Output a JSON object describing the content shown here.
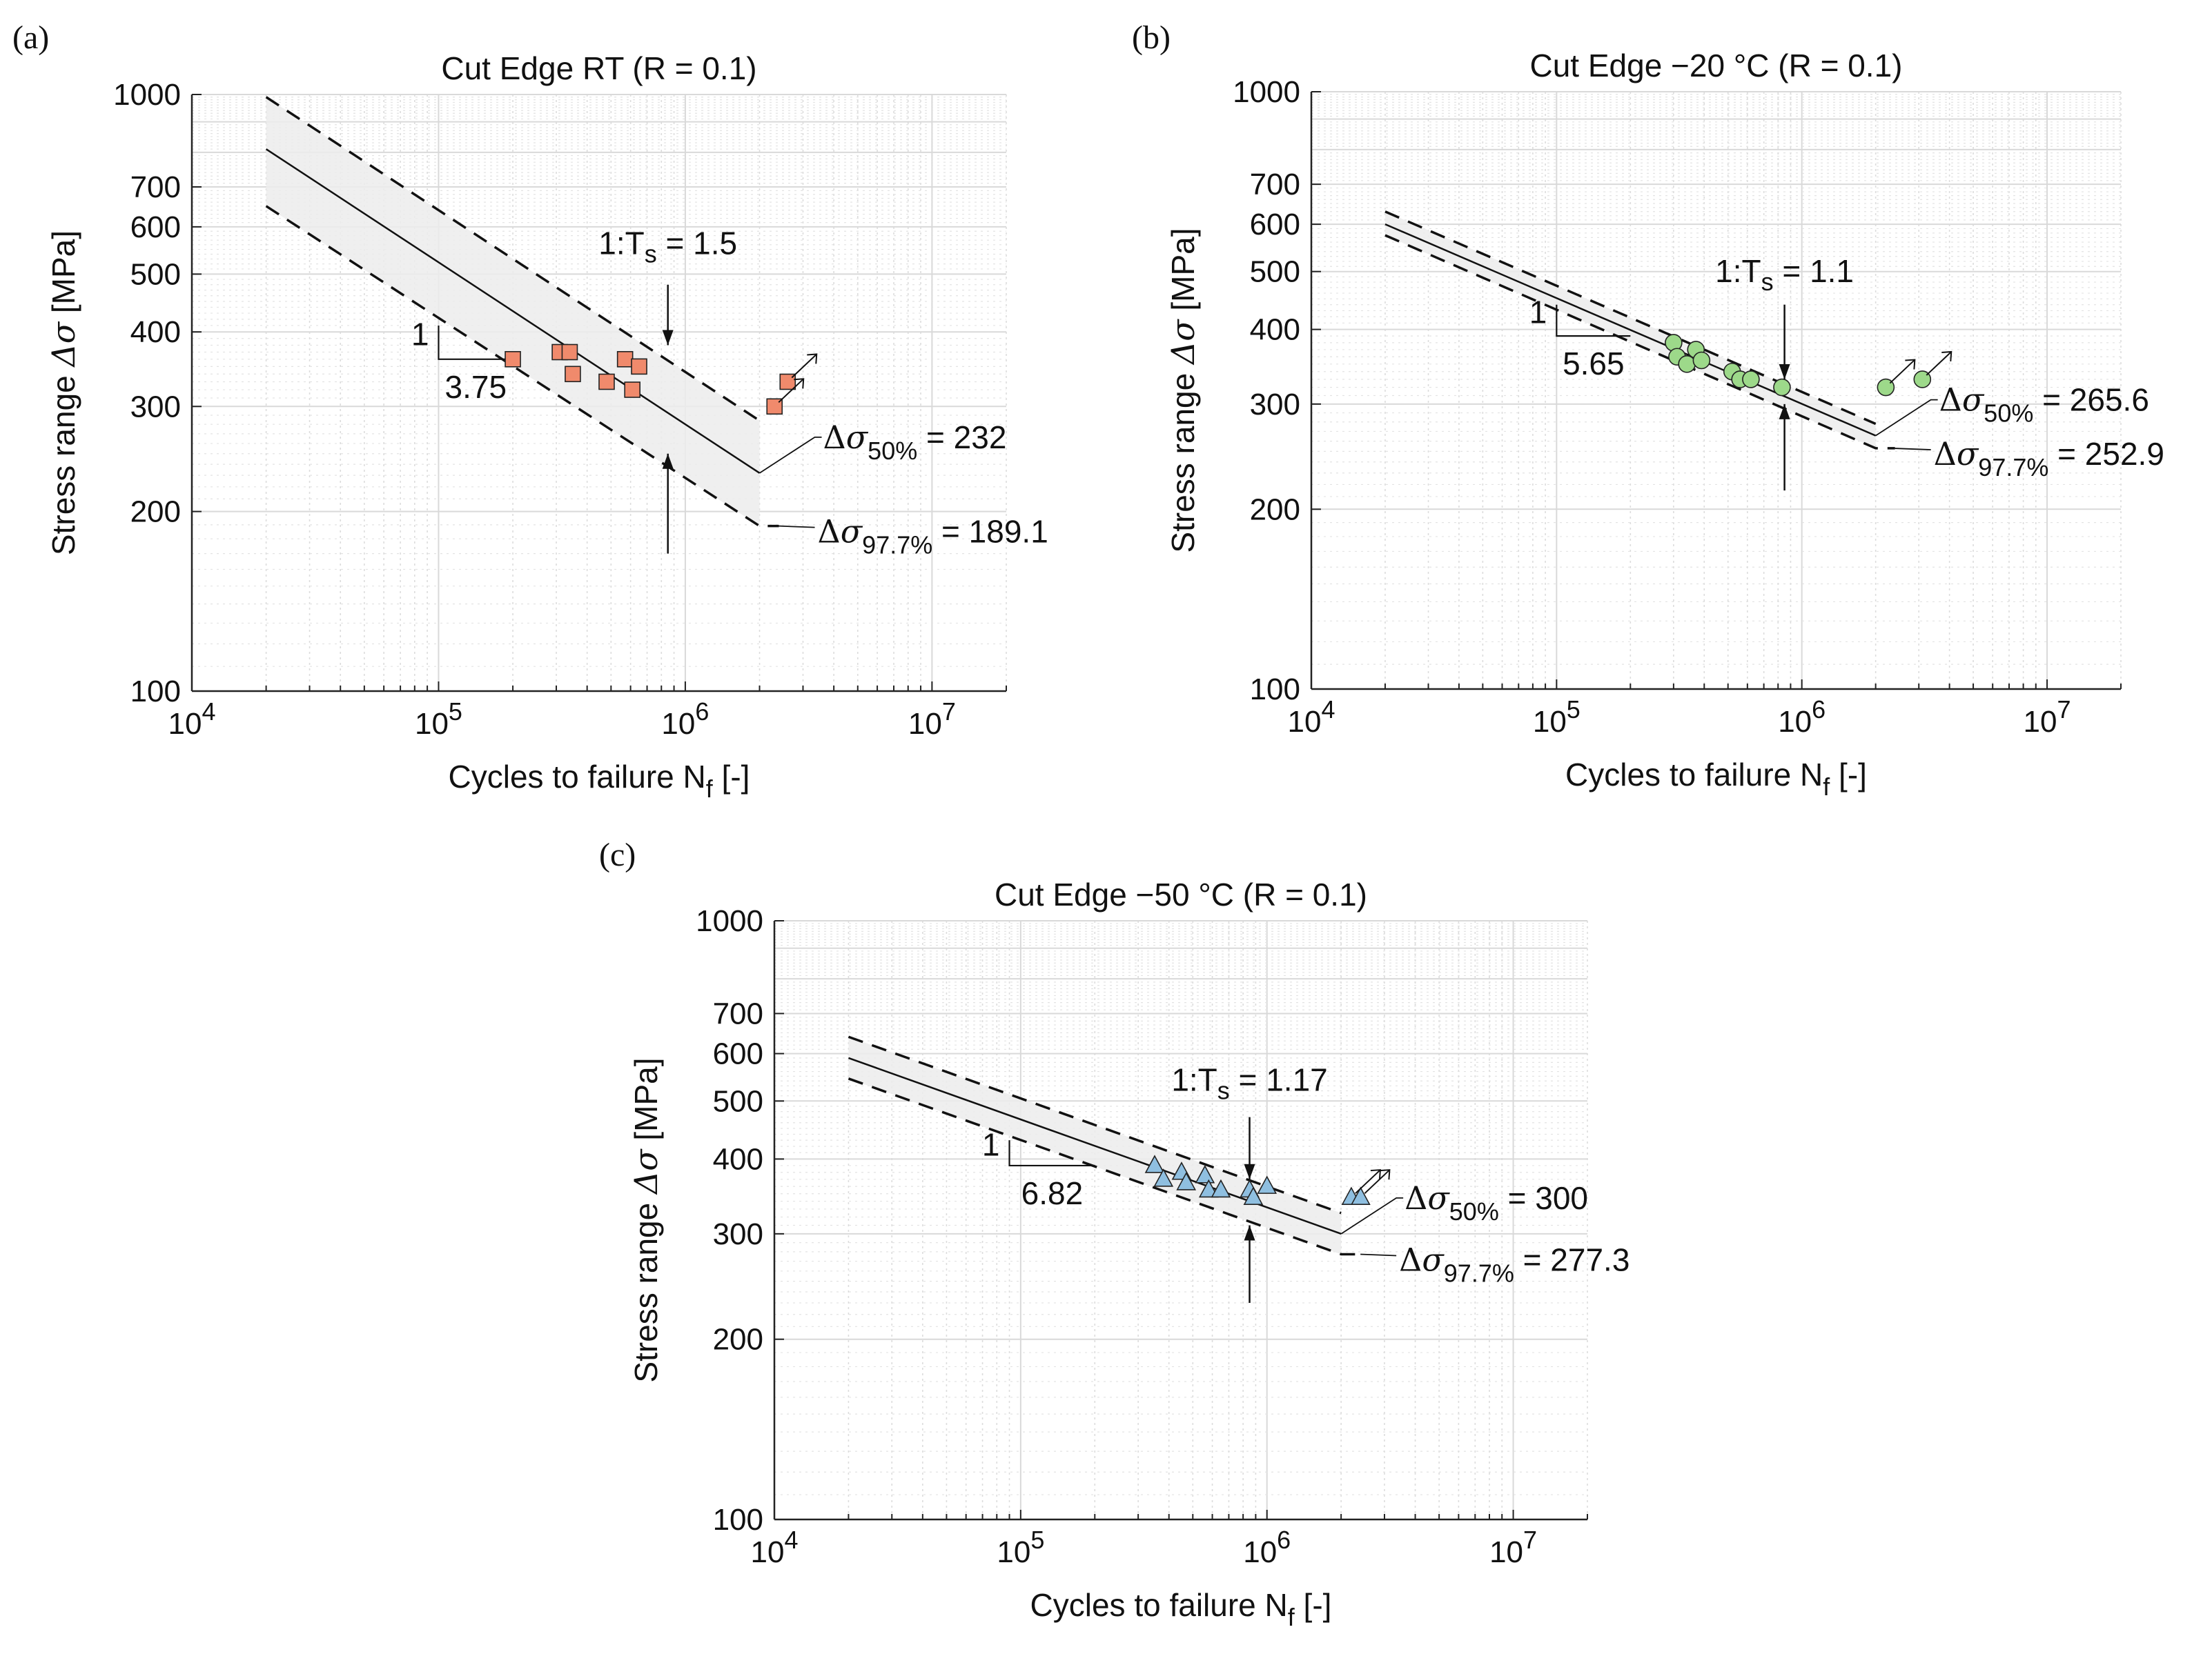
{
  "figure": {
    "panels": [
      "(a)",
      "(b)",
      "(c)"
    ]
  },
  "chart_data": [
    {
      "type": "scatter",
      "panel_label": "(a)",
      "title": "Cut Edge RT (R = 0.1)",
      "xlabel_text": "Cycles to failure N",
      "xlabel_sub": "f",
      "xlabel_tail": " [-]",
      "ylabel_text": "Stress range ",
      "ylabel_symbol": "Δσ",
      "ylabel_tail": " [MPa]",
      "xscale": "log",
      "yscale": "log",
      "xlim": [
        10000,
        20000000
      ],
      "ylim": [
        100,
        1000
      ],
      "xticks": [
        10000,
        100000,
        1000000,
        10000000
      ],
      "xtick_base": "10",
      "xtick_exponents": [
        "4",
        "5",
        "6",
        "7"
      ],
      "yticks": [
        100,
        200,
        300,
        400,
        500,
        600,
        700,
        1000
      ],
      "ytick_labels": [
        "100",
        "200",
        "300",
        "400",
        "500",
        "600",
        "700",
        "1000"
      ],
      "grid": true,
      "marker": "square",
      "marker_color": "#f08a6c",
      "points": [
        [
          200000,
          360
        ],
        [
          310000,
          370
        ],
        [
          340000,
          370
        ],
        [
          350000,
          340
        ],
        [
          480000,
          330
        ],
        [
          570000,
          360
        ],
        [
          610000,
          320
        ],
        [
          650000,
          350
        ],
        [
          2300000,
          300
        ],
        [
          2600000,
          330
        ]
      ],
      "runouts": [
        [
          2300000,
          300
        ],
        [
          2600000,
          330
        ]
      ],
      "band": {
        "x": [
          20000,
          2000000
        ],
        "upper": [
          990,
          284
        ],
        "lower": [
          650,
          189.1
        ]
      },
      "mean_line": {
        "x": [
          20000,
          2000000
        ],
        "y": [
          810,
          232
        ]
      },
      "slope": "3.75",
      "slope_rise": "1",
      "slope_triangle": {
        "x": [
          100000,
          200000
        ],
        "y_top": 410,
        "y_bottom": 360
      },
      "scatter_band_label": "1:T",
      "scatter_band_sub": "s",
      "scatter_band_value": " =  1.5",
      "arrow_x": 850000,
      "arrow_top": {
        "from": 480,
        "to": 380
      },
      "arrow_bottom": {
        "from": 170,
        "to": 250
      },
      "ts_label_pos": {
        "x": 850000,
        "y": 540
      },
      "pct50_label": "50%",
      "pct50_value": " = 232",
      "pct977_label": "97.7%",
      "pct977_value": " = 189.1",
      "label50_anchor": [
        2000000,
        232
      ],
      "label977_anchor": [
        2000000,
        189.1
      ]
    },
    {
      "type": "scatter",
      "panel_label": "(b)",
      "title": "Cut Edge −20 °C (R = 0.1)",
      "xlabel_text": "Cycles to failure N",
      "xlabel_sub": "f",
      "xlabel_tail": " [-]",
      "ylabel_text": "Stress range ",
      "ylabel_symbol": "Δσ",
      "ylabel_tail": " [MPa]",
      "xscale": "log",
      "yscale": "log",
      "xlim": [
        10000,
        20000000
      ],
      "ylim": [
        100,
        1000
      ],
      "xticks": [
        10000,
        100000,
        1000000,
        10000000
      ],
      "xtick_base": "10",
      "xtick_exponents": [
        "4",
        "5",
        "6",
        "7"
      ],
      "yticks": [
        100,
        200,
        300,
        400,
        500,
        600,
        700,
        1000
      ],
      "ytick_labels": [
        "100",
        "200",
        "300",
        "400",
        "500",
        "600",
        "700",
        "1000"
      ],
      "grid": true,
      "marker": "circle",
      "marker_color": "#9dd98a",
      "points": [
        [
          300000,
          380
        ],
        [
          310000,
          360
        ],
        [
          340000,
          350
        ],
        [
          370000,
          370
        ],
        [
          390000,
          355
        ],
        [
          520000,
          340
        ],
        [
          560000,
          330
        ],
        [
          620000,
          330
        ],
        [
          830000,
          320
        ],
        [
          2200000,
          320
        ],
        [
          3100000,
          330
        ]
      ],
      "runouts": [
        [
          2200000,
          320
        ],
        [
          3100000,
          330
        ]
      ],
      "band": {
        "x": [
          20000,
          2000000
        ],
        "upper": [
          630,
          278
        ],
        "lower": [
          575,
          253
        ]
      },
      "mean_line": {
        "x": [
          20000,
          2000000
        ],
        "y": [
          600,
          265.6
        ]
      },
      "slope": "5.65",
      "slope_rise": "1",
      "slope_triangle": {
        "x": [
          100000,
          200000
        ],
        "y_top": 440,
        "y_bottom": 390
      },
      "scatter_band_label": "1:T",
      "scatter_band_sub": "s",
      "scatter_band_value": " =  1.1",
      "arrow_x": 850000,
      "arrow_top": {
        "from": 440,
        "to": 330
      },
      "arrow_bottom": {
        "from": 215,
        "to": 300
      },
      "ts_label_pos": {
        "x": 850000,
        "y": 480
      },
      "pct50_label": "50%",
      "pct50_value": " = 265.6",
      "pct977_label": "97.7%",
      "pct977_value": " = 252.9",
      "label50_anchor": [
        2000000,
        265.6
      ],
      "label977_anchor": [
        2000000,
        252.9
      ]
    },
    {
      "type": "scatter",
      "panel_label": "(c)",
      "title": "Cut Edge −50 °C (R = 0.1)",
      "xlabel_text": "Cycles to failure N",
      "xlabel_sub": "f",
      "xlabel_tail": " [-]",
      "ylabel_text": "Stress range ",
      "ylabel_symbol": "Δσ",
      "ylabel_tail": " [MPa]",
      "xscale": "log",
      "yscale": "log",
      "xlim": [
        10000,
        20000000
      ],
      "ylim": [
        100,
        1000
      ],
      "xticks": [
        10000,
        100000,
        1000000,
        10000000
      ],
      "xtick_base": "10",
      "xtick_exponents": [
        "4",
        "5",
        "6",
        "7"
      ],
      "yticks": [
        100,
        200,
        300,
        400,
        500,
        600,
        700,
        1000
      ],
      "ytick_labels": [
        "100",
        "200",
        "300",
        "400",
        "500",
        "600",
        "700",
        "1000"
      ],
      "grid": true,
      "marker": "triangle",
      "marker_color": "#8fbfe0",
      "points": [
        [
          350000,
          390
        ],
        [
          380000,
          370
        ],
        [
          450000,
          380
        ],
        [
          470000,
          365
        ],
        [
          560000,
          375
        ],
        [
          580000,
          355
        ],
        [
          650000,
          355
        ],
        [
          850000,
          355
        ],
        [
          880000,
          345
        ],
        [
          1000000,
          360
        ],
        [
          2200000,
          345
        ],
        [
          2400000,
          345
        ]
      ],
      "runouts": [
        [
          2200000,
          345
        ],
        [
          2400000,
          345
        ]
      ],
      "band": {
        "x": [
          20000,
          2000000
        ],
        "upper": [
          640,
          325
        ],
        "lower": [
          545,
          277.3
        ]
      },
      "mean_line": {
        "x": [
          20000,
          2000000
        ],
        "y": [
          590,
          300
        ]
      },
      "slope": "6.82",
      "slope_rise": "1",
      "slope_triangle": {
        "x": [
          90000,
          200000
        ],
        "y_top": 430,
        "y_bottom": 390
      },
      "scatter_band_label": "1:T",
      "scatter_band_sub": "s",
      "scatter_band_value": " =  1.17",
      "arrow_x": 850000,
      "arrow_top": {
        "from": 470,
        "to": 370
      },
      "arrow_bottom": {
        "from": 230,
        "to": 310
      },
      "ts_label_pos": {
        "x": 850000,
        "y": 520
      },
      "pct50_label": "50%",
      "pct50_value": " = 300",
      "pct977_label": "97.7%",
      "pct977_value": " = 277.3",
      "label50_anchor": [
        2000000,
        300
      ],
      "label977_anchor": [
        2000000,
        277.3
      ]
    }
  ]
}
